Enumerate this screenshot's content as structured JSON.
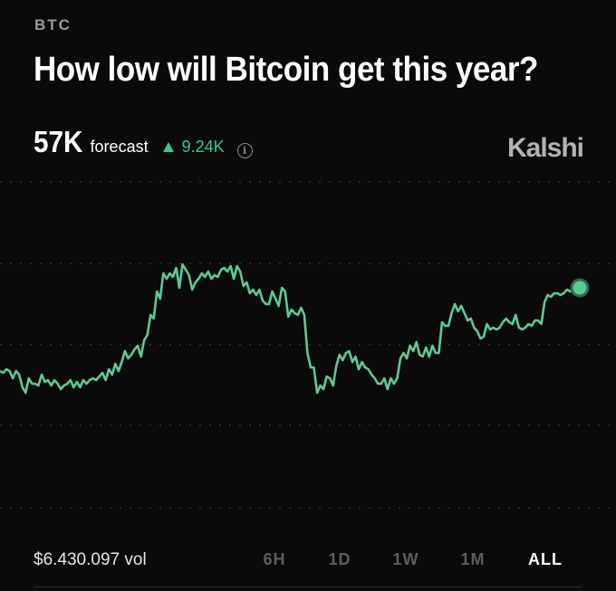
{
  "market": {
    "tag": "BTC",
    "title": "How low will Bitcoin get this year?",
    "forecast_value": "57K",
    "forecast_label": "forecast",
    "change": "9.24K",
    "brand": "Kalshi"
  },
  "footer": {
    "volume": "$6.430.097 vol",
    "ranges": [
      {
        "label": "6H",
        "active": false
      },
      {
        "label": "1D",
        "active": false
      },
      {
        "label": "1W",
        "active": false
      },
      {
        "label": "1M",
        "active": false
      },
      {
        "label": "ALL",
        "active": true
      }
    ]
  },
  "colors": {
    "line": "#5ccb92",
    "dot": "#5ccb92",
    "up": "#35c98a",
    "grid": "#3a3a3a"
  },
  "chart_data": {
    "type": "line",
    "series": [
      {
        "values": [
          40,
          39,
          41,
          40,
          36,
          40,
          38,
          31,
          28,
          36,
          33,
          33,
          32,
          38,
          34,
          35,
          32,
          35,
          33,
          30,
          32,
          33,
          35,
          31,
          34,
          31,
          35,
          33,
          35,
          36,
          35,
          37,
          39,
          35,
          41,
          38,
          44,
          40,
          45,
          51,
          47,
          49,
          52,
          54,
          48,
          57,
          60,
          71,
          69,
          84,
          80,
          94,
          91,
          94,
          92,
          97,
          86,
          99,
          96,
          93,
          85,
          89,
          91,
          94,
          92,
          95,
          91,
          93,
          92,
          96,
          97,
          95,
          98,
          91,
          98,
          95,
          87,
          89,
          83,
          85,
          82,
          85,
          79,
          77,
          77,
          84,
          80,
          76,
          86,
          84,
          70,
          74,
          72,
          71,
          75,
          71,
          50,
          42,
          42,
          28,
          32,
          30,
          37,
          36,
          32,
          43,
          49,
          46,
          50,
          51,
          45,
          48,
          41,
          45,
          42,
          41,
          38,
          36,
          33,
          33,
          36,
          30,
          36,
          33,
          36,
          47,
          50,
          47,
          54,
          51,
          56,
          49,
          48,
          53,
          48,
          54,
          50,
          50,
          67,
          65,
          65,
          72,
          77,
          73,
          76,
          72,
          68,
          69,
          64,
          62,
          58,
          59,
          66,
          63,
          64,
          63,
          64,
          67,
          69,
          67,
          66,
          71,
          64,
          63,
          64,
          66,
          65,
          68,
          68,
          66,
          78,
          82,
          81,
          83,
          83,
          82,
          83,
          85,
          84,
          85,
          86,
          86
        ]
      }
    ]
  }
}
